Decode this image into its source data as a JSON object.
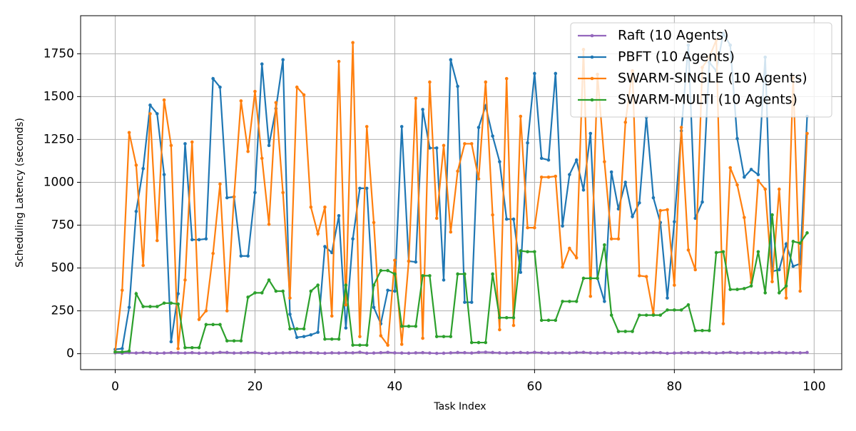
{
  "chart_data": {
    "type": "line",
    "xlabel": "Task Index",
    "ylabel": "Scheduling Latency (seconds)",
    "x": [
      0,
      1,
      2,
      3,
      4,
      5,
      6,
      7,
      8,
      9,
      10,
      11,
      12,
      13,
      14,
      15,
      16,
      17,
      18,
      19,
      20,
      21,
      22,
      23,
      24,
      25,
      26,
      27,
      28,
      29,
      30,
      31,
      32,
      33,
      34,
      35,
      36,
      37,
      38,
      39,
      40,
      41,
      42,
      43,
      44,
      45,
      46,
      47,
      48,
      49,
      50,
      51,
      52,
      53,
      54,
      55,
      56,
      57,
      58,
      59,
      60,
      61,
      62,
      63,
      64,
      65,
      66,
      67,
      68,
      69,
      70,
      71,
      72,
      73,
      74,
      75,
      76,
      77,
      78,
      79,
      80,
      81,
      82,
      83,
      84,
      85,
      86,
      87,
      88,
      89,
      90,
      91,
      92,
      93,
      94,
      95,
      96,
      97,
      98,
      99
    ],
    "series": [
      {
        "name": "Raft (10 Agents)",
        "color": "#9467bd",
        "values": [
          5,
          3,
          6,
          4,
          7,
          5,
          3,
          4,
          6,
          5,
          4,
          6,
          3,
          5,
          4,
          8,
          7,
          4,
          5,
          6,
          7,
          3,
          2,
          4,
          5,
          6,
          7,
          5,
          6,
          4,
          3,
          5,
          4,
          6,
          5,
          9,
          3,
          4,
          6,
          8,
          5,
          4,
          3,
          5,
          6,
          4,
          2,
          3,
          5,
          7,
          6,
          4,
          8,
          9,
          7,
          5,
          4,
          6,
          7,
          5,
          8,
          6,
          4,
          5,
          6,
          4,
          7,
          8,
          5,
          4,
          6,
          3,
          5,
          6,
          4,
          3,
          5,
          7,
          6,
          2,
          4,
          5,
          6,
          4,
          7,
          5,
          3,
          6,
          8,
          4,
          5,
          6,
          4,
          5,
          6,
          7,
          4,
          6,
          5,
          7
        ]
      },
      {
        "name": "PBFT (10 Agents)",
        "color": "#1f77b4",
        "values": [
          25,
          30,
          270,
          830,
          1080,
          1450,
          1400,
          1045,
          70,
          350,
          1225,
          665,
          665,
          670,
          1605,
          1555,
          910,
          915,
          570,
          570,
          940,
          1690,
          1215,
          1430,
          1715,
          230,
          95,
          100,
          110,
          125,
          625,
          590,
          805,
          150,
          670,
          965,
          965,
          270,
          175,
          370,
          365,
          1325,
          540,
          535,
          1425,
          1200,
          1200,
          430,
          1715,
          1560,
          300,
          300,
          1320,
          1445,
          1270,
          1120,
          785,
          785,
          475,
          1230,
          1635,
          1140,
          1130,
          1635,
          745,
          1045,
          1130,
          955,
          1285,
          440,
          305,
          1060,
          845,
          1000,
          800,
          880,
          1380,
          910,
          765,
          325,
          770,
          1300,
          1800,
          790,
          885,
          1700,
          1650,
          1870,
          1800,
          1255,
          1030,
          1075,
          1045,
          1730,
          480,
          490,
          640,
          510,
          525,
          1385
        ]
      },
      {
        "name": "SWARM-SINGLE (10 Agents)",
        "color": "#ff7f0e",
        "values": [
          10,
          370,
          1290,
          1100,
          515,
          1400,
          660,
          1480,
          1215,
          30,
          430,
          1235,
          200,
          250,
          585,
          990,
          250,
          915,
          1475,
          1180,
          1530,
          1140,
          755,
          1465,
          940,
          325,
          1555,
          1510,
          855,
          700,
          855,
          220,
          1705,
          285,
          1815,
          100,
          1325,
          765,
          105,
          50,
          545,
          55,
          540,
          1490,
          90,
          1585,
          790,
          1215,
          710,
          1065,
          1225,
          1225,
          1020,
          1585,
          810,
          140,
          1605,
          165,
          1385,
          735,
          735,
          1030,
          1030,
          1035,
          505,
          615,
          560,
          1775,
          335,
          1630,
          1120,
          670,
          670,
          1350,
          1650,
          455,
          450,
          230,
          835,
          840,
          400,
          1320,
          605,
          490,
          1670,
          1730,
          1830,
          175,
          1085,
          985,
          795,
          415,
          1010,
          960,
          420,
          960,
          325,
          1610,
          365,
          1285
        ]
      },
      {
        "name": "SWARM-MULTI (10 Agents)",
        "color": "#2ca02c",
        "values": [
          10,
          10,
          15,
          350,
          275,
          275,
          275,
          295,
          295,
          290,
          35,
          35,
          35,
          170,
          170,
          170,
          75,
          75,
          75,
          330,
          355,
          355,
          430,
          365,
          365,
          145,
          145,
          145,
          365,
          400,
          85,
          85,
          85,
          400,
          50,
          50,
          50,
          400,
          485,
          485,
          465,
          160,
          160,
          160,
          455,
          455,
          100,
          100,
          100,
          465,
          465,
          65,
          65,
          65,
          465,
          210,
          210,
          210,
          600,
          595,
          595,
          195,
          195,
          195,
          305,
          305,
          305,
          440,
          440,
          440,
          635,
          225,
          130,
          130,
          130,
          225,
          225,
          225,
          225,
          255,
          255,
          255,
          285,
          135,
          135,
          135,
          590,
          595,
          375,
          375,
          380,
          395,
          595,
          355,
          810,
          355,
          395,
          655,
          645,
          705
        ]
      }
    ],
    "xlim": [
      -4.95,
      103.95
    ],
    "ylim": [
      -93,
      1972
    ],
    "xticks": [
      0,
      20,
      40,
      60,
      80,
      100
    ],
    "yticks": [
      0,
      250,
      500,
      750,
      1000,
      1250,
      1500,
      1750
    ],
    "grid": true,
    "legend": "upper-right"
  }
}
